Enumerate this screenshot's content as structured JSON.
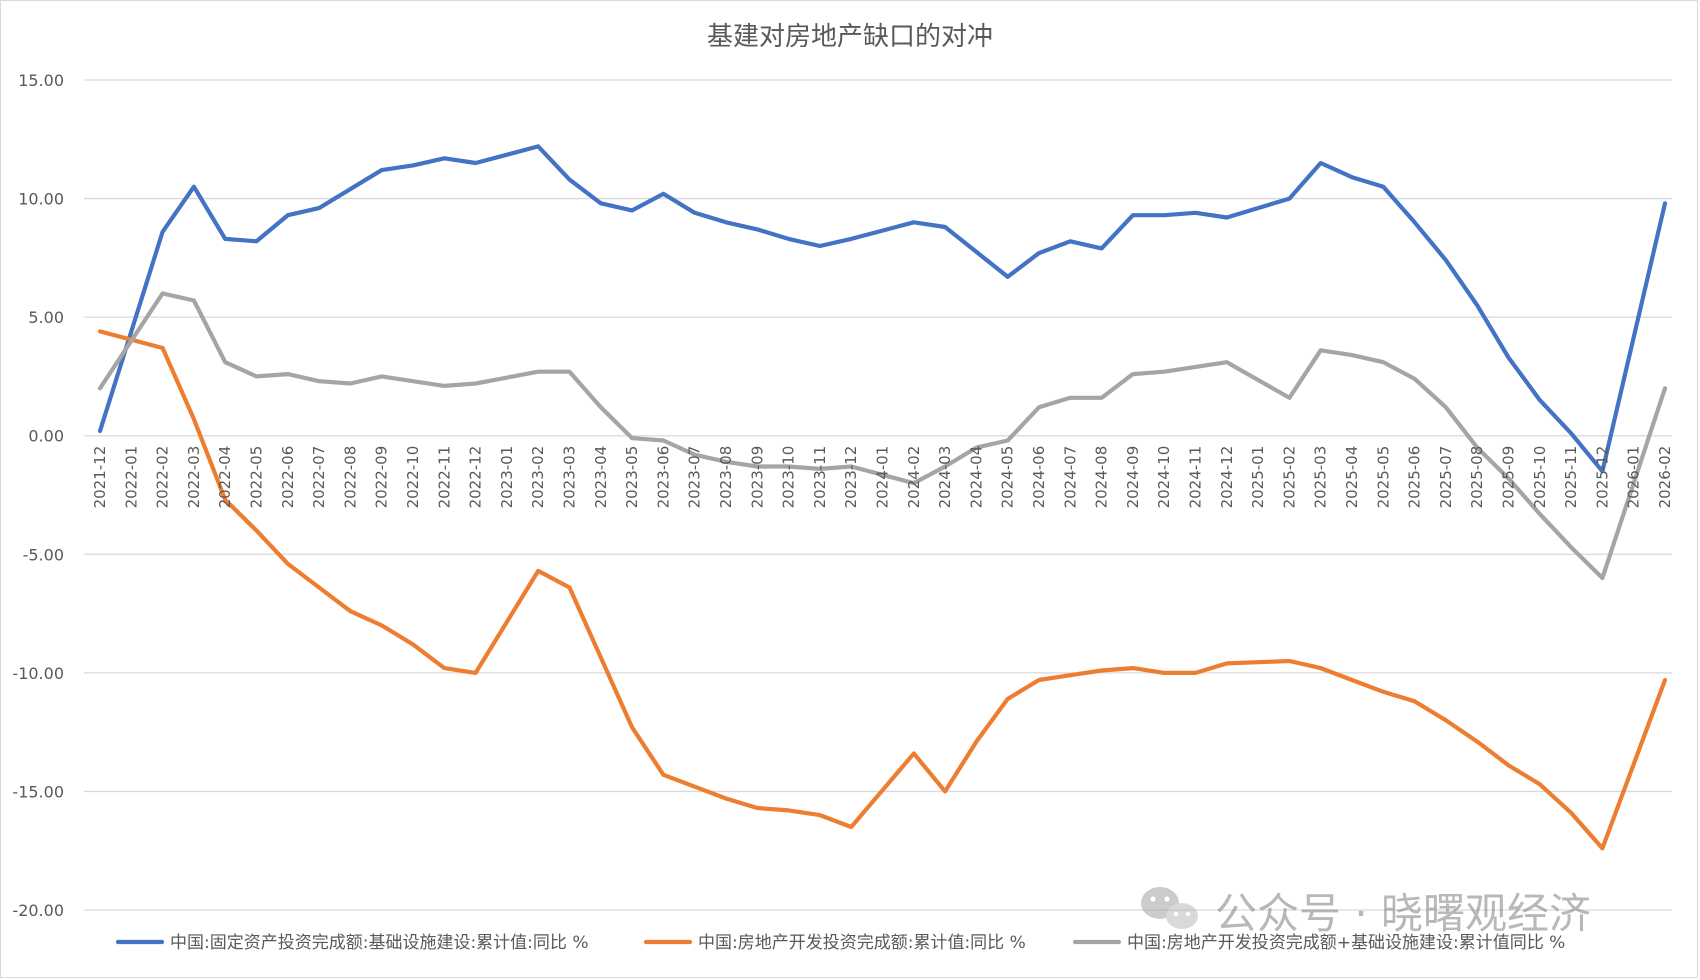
{
  "chart_data": {
    "type": "line",
    "title": "基建对房地产缺口的对冲",
    "ylim": [
      -20,
      15
    ],
    "yticks": [
      "15.00",
      "10.00",
      "5.00",
      "0.00",
      "-5.00",
      "-10.00",
      "-15.00",
      "-20.00"
    ],
    "grid": true,
    "legend_position": "bottom",
    "categories": [
      "2021-12",
      "2022-01",
      "2022-02",
      "2022-03",
      "2022-04",
      "2022-05",
      "2022-06",
      "2022-07",
      "2022-08",
      "2022-09",
      "2022-10",
      "2022-11",
      "2022-12",
      "2023-01",
      "2023-02",
      "2023-03",
      "2023-04",
      "2023-05",
      "2023-06",
      "2023-07",
      "2023-08",
      "2023-09",
      "2023-10",
      "2023-11",
      "2023-12",
      "2024-01",
      "2024-02",
      "2024-03",
      "2024-04",
      "2024-05",
      "2024-06",
      "2024-07",
      "2024-08",
      "2024-09",
      "2024-10",
      "2024-11",
      "2024-12",
      "2025-01",
      "2025-02",
      "2025-03",
      "2025-04",
      "2025-05",
      "2025-06",
      "2025-07",
      "2025-08",
      "2025-09",
      "2025-10",
      "2025-11",
      "2025-12",
      "2026-01",
      "2026-02"
    ],
    "series": [
      {
        "name": "中国:固定资产投资完成额:基础设施建设:累计值:同比 %",
        "color": "#4472c4",
        "values": [
          0.2,
          null,
          8.6,
          10.5,
          8.3,
          8.2,
          9.3,
          9.6,
          10.4,
          11.2,
          11.4,
          11.7,
          11.5,
          null,
          12.2,
          10.8,
          9.8,
          9.5,
          10.2,
          9.4,
          9.0,
          8.7,
          8.3,
          8.0,
          8.3,
          null,
          9.0,
          8.8,
          null,
          6.7,
          7.7,
          8.2,
          7.9,
          9.3,
          9.3,
          9.4,
          9.2,
          null,
          10.0,
          11.5,
          10.9,
          10.5,
          9.0,
          7.4,
          5.5,
          3.3,
          1.5,
          0.1,
          -1.5,
          null,
          9.8
        ]
      },
      {
        "name": "中国:房地产开发投资完成额:累计值:同比 %",
        "color": "#ed7d31",
        "values": [
          4.4,
          null,
          3.7,
          0.7,
          -2.7,
          -4.0,
          -5.4,
          -6.4,
          -7.4,
          -8.0,
          -8.8,
          -9.8,
          -10.0,
          null,
          -5.7,
          -6.4,
          null,
          -12.3,
          -14.3,
          -14.8,
          -15.3,
          -15.7,
          -15.8,
          -16.0,
          -16.5,
          null,
          -13.4,
          -15.0,
          -12.9,
          -11.1,
          -10.3,
          -10.1,
          -9.9,
          -9.8,
          -10.0,
          -10.0,
          -9.6,
          null,
          -9.5,
          -9.8,
          -10.3,
          -10.8,
          -11.2,
          -12.0,
          -12.9,
          -13.9,
          -14.7,
          -15.9,
          -17.4,
          null,
          -10.3
        ]
      },
      {
        "name": "中国:房地产开发投资完成额+基础设施建设:累计值同比 %",
        "color": "#a5a5a5",
        "values": [
          2.0,
          null,
          6.0,
          5.7,
          3.1,
          2.5,
          2.6,
          2.3,
          2.2,
          2.5,
          2.3,
          2.1,
          2.2,
          null,
          2.7,
          2.7,
          1.2,
          -0.1,
          -0.2,
          -0.8,
          -1.1,
          -1.3,
          -1.3,
          -1.4,
          -1.3,
          null,
          -2.0,
          -1.3,
          -0.5,
          -0.2,
          1.2,
          1.6,
          1.6,
          2.6,
          2.7,
          2.9,
          3.1,
          null,
          1.6,
          3.6,
          3.4,
          3.1,
          2.4,
          1.2,
          -0.5,
          -1.8,
          -3.3,
          -4.7,
          -6.0,
          null,
          2.0
        ]
      }
    ]
  },
  "watermark": {
    "text": "公众号 · 晓曙观经济",
    "icon": "wechat-icon"
  }
}
